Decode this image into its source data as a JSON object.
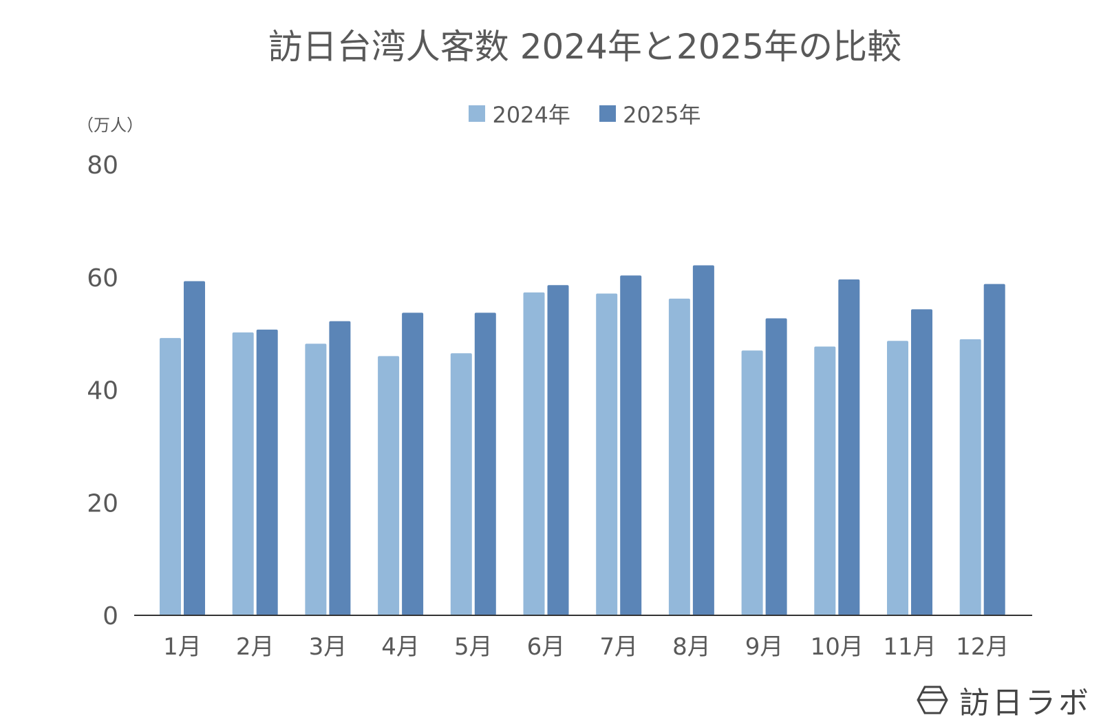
{
  "chart_data": {
    "type": "bar",
    "title": "訪日台湾人客数 2024年と2025年の比較",
    "ylabel": "（万人）",
    "ylim": [
      0,
      80
    ],
    "yticks": [
      0,
      20,
      40,
      60,
      80
    ],
    "grid": false,
    "legend_position": "top",
    "categories": [
      "1月",
      "2月",
      "3月",
      "4月",
      "5月",
      "6月",
      "7月",
      "8月",
      "9月",
      "10月",
      "11月",
      "12月"
    ],
    "series": [
      {
        "name": "2024年",
        "color": "#93b8da",
        "values": [
          49.2,
          50.2,
          48.2,
          46.0,
          46.5,
          57.3,
          57.1,
          56.2,
          47.0,
          47.7,
          48.7,
          49.0
        ]
      },
      {
        "name": "2025年",
        "color": "#5b85b7",
        "values": [
          59.3,
          50.7,
          52.2,
          53.7,
          53.7,
          58.6,
          60.3,
          62.1,
          52.7,
          59.6,
          54.3,
          58.8
        ]
      }
    ]
  },
  "logo": {
    "text": "訪日ラボ"
  }
}
